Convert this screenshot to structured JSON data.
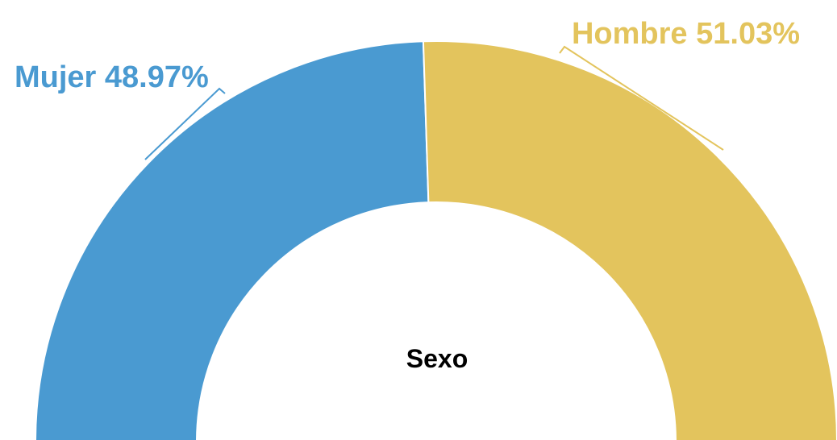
{
  "chart_data": {
    "type": "pie",
    "variant": "semi-donut",
    "center_label": "Sexo",
    "slices": [
      {
        "name": "Mujer",
        "value": 48.97,
        "label": "Mujer 48.97%",
        "color": "#4a9ad1"
      },
      {
        "name": "Hombre",
        "value": 51.03,
        "label": "Hombre 51.03%",
        "color": "#e3c45d"
      }
    ]
  }
}
